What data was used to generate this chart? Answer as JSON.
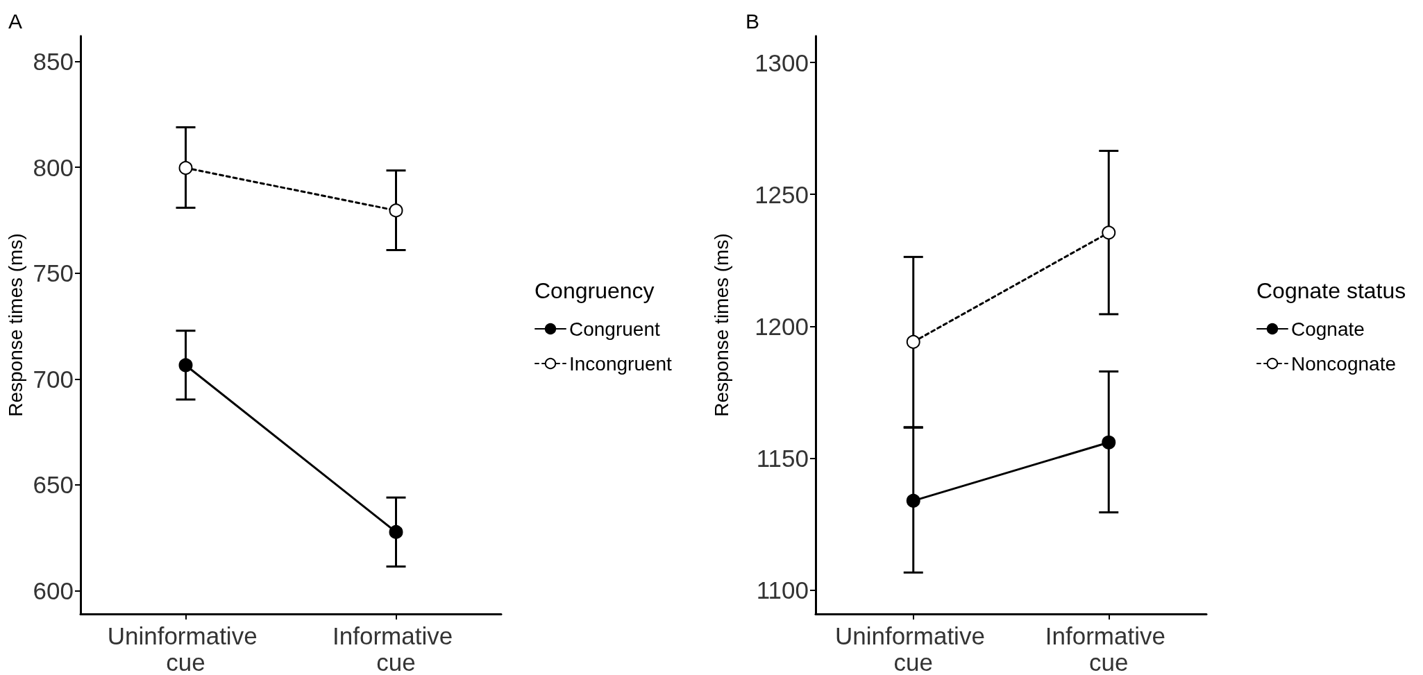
{
  "chart_data": [
    {
      "type": "line",
      "title": "A",
      "ylabel": "Response times (ms)",
      "legend_title": "Congruency",
      "categories": [
        "Uninformative cue",
        "Informative cue"
      ],
      "ylim": [
        589,
        862
      ],
      "yticks": [
        600,
        650,
        700,
        750,
        800,
        850
      ],
      "grid": false,
      "legend": "right",
      "marker": "circle",
      "series": [
        {
          "name": "Congruent",
          "color": "#000000",
          "line_style": "solid",
          "values": [
            706.5,
            627.7
          ],
          "errors": [
            [
              690.3,
              722.8
            ],
            [
              611.4,
              644
            ]
          ]
        },
        {
          "name": "Incongruent",
          "color": "#000000",
          "colors": [
            "#ffffff",
            "#ffffff"
          ],
          "line_style": "dashed",
          "values": [
            799.7,
            779.6
          ],
          "errors": [
            [
              780.9,
              818.9
            ],
            [
              760.9,
              798.5
            ]
          ]
        }
      ]
    },
    {
      "type": "line",
      "title": "B",
      "ylabel": "Response times (ms)",
      "legend_title": "Cognate status",
      "categories": [
        "Uninformative cue",
        "Informative cue"
      ],
      "ylim": [
        1091,
        1310
      ],
      "yticks": [
        1100,
        1150,
        1200,
        1250,
        1300
      ],
      "grid": false,
      "legend": "right",
      "marker": "circle",
      "series": [
        {
          "name": "Cognate",
          "color": "#000000",
          "line_style": "solid",
          "values": [
            1133.9,
            1156
          ],
          "errors": [
            [
              1106.7,
              1161.6
            ],
            [
              1129.5,
              1182.9
            ]
          ]
        },
        {
          "name": "Noncognate",
          "color": "#000000",
          "colors": [
            "#ffffff",
            "#ffffff"
          ],
          "line_style": "dashed",
          "values": [
            1194.1,
            1235.5
          ],
          "errors": [
            [
              1161.8,
              1226.3
            ],
            [
              1204.6,
              1266.5
            ]
          ]
        }
      ]
    }
  ]
}
